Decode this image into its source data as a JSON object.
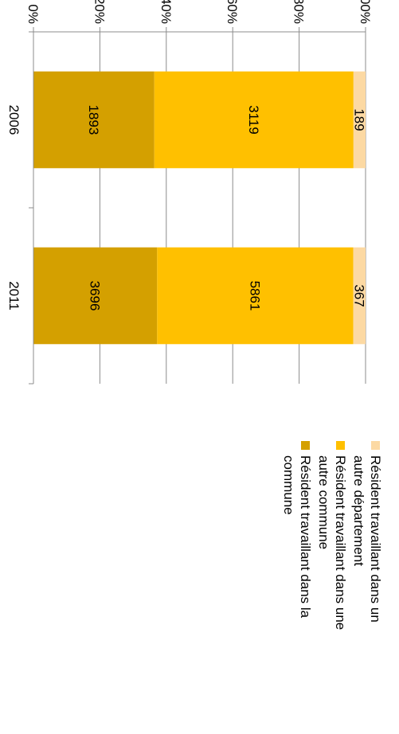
{
  "chart_data": {
    "type": "bar",
    "stacked": "percent",
    "orientation": "vertical",
    "rotated": "90deg-clockwise",
    "categories": [
      "2006",
      "2011"
    ],
    "series": [
      {
        "name": "Résident travaillant dans la commune",
        "values": [
          1893,
          3696
        ],
        "color": "#d4a000"
      },
      {
        "name": "Résident travaillant dans une autre commune",
        "values": [
          3119,
          5861
        ],
        "color": "#ffc000"
      },
      {
        "name": "Résident travaillant dans un autre département",
        "values": [
          189,
          367
        ],
        "color": "#fcd9a3"
      }
    ],
    "y_ticks": [
      "0%",
      "20%",
      "40%",
      "60%",
      "80%",
      "100%"
    ],
    "ylim": [
      0,
      100
    ],
    "grid": true,
    "legend_position": "right"
  }
}
